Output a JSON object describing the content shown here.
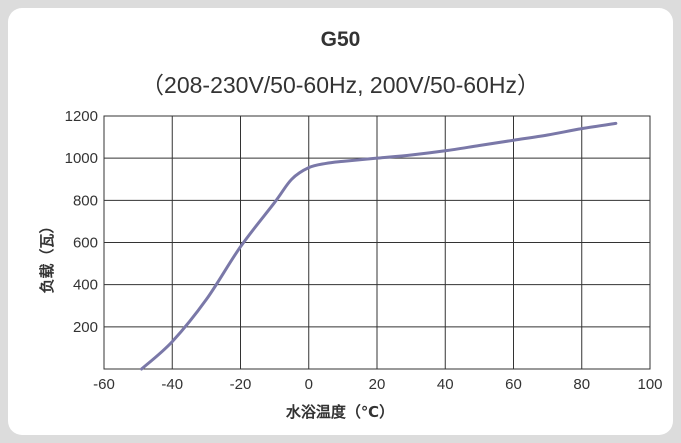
{
  "chart_data": {
    "type": "line",
    "title": "G50",
    "subtitle": "（208-230V/50-60Hz, 200V/50-60Hz）",
    "xlabel": "水浴温度（℃）",
    "ylabel": "负载（瓦）",
    "xlim": [
      -60,
      100
    ],
    "ylim": [
      0,
      1200
    ],
    "x_ticks": [
      "-60",
      "-40",
      "-20",
      "0",
      "20",
      "40",
      "60",
      "80",
      "100"
    ],
    "y_ticks": [
      "200",
      "400",
      "600",
      "800",
      "1000",
      "1200"
    ],
    "grid": true,
    "series": [
      {
        "x": [
          -49,
          -40,
          -30,
          -20,
          -10,
          -5,
          0,
          5,
          10,
          20,
          30,
          40,
          50,
          60,
          70,
          80,
          90
        ],
        "y": [
          0,
          130,
          330,
          580,
          790,
          900,
          955,
          975,
          985,
          1000,
          1015,
          1035,
          1060,
          1085,
          1110,
          1140,
          1165
        ],
        "color": "#7a78a8"
      }
    ]
  }
}
